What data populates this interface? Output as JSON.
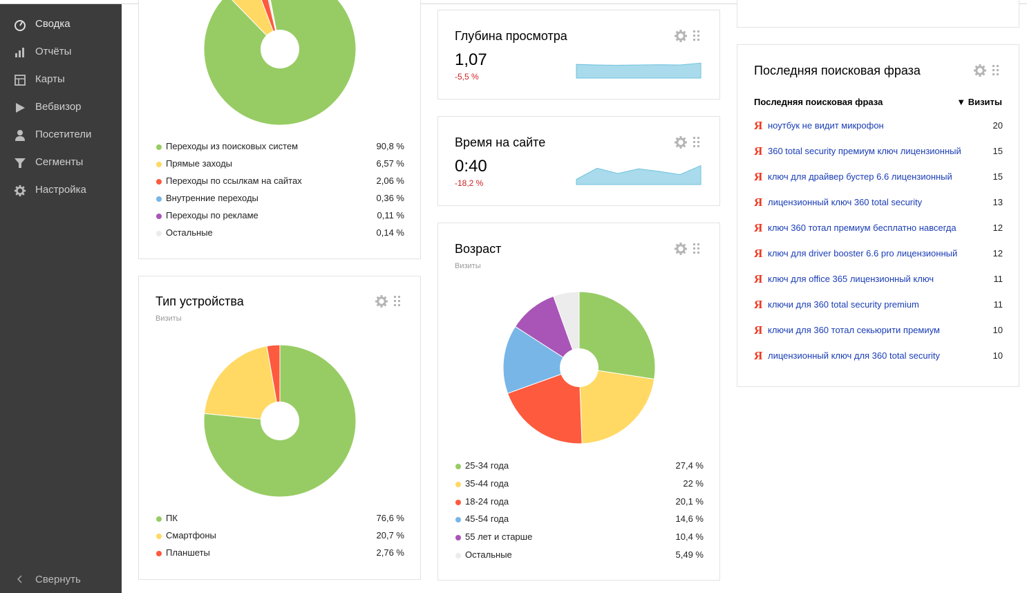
{
  "sidebar": {
    "items": [
      {
        "label": "Сводка",
        "icon": "dashboard-icon"
      },
      {
        "label": "Отчёты",
        "icon": "bar-chart-icon"
      },
      {
        "label": "Карты",
        "icon": "map-icon"
      },
      {
        "label": "Вебвизор",
        "icon": "play-icon"
      },
      {
        "label": "Посетители",
        "icon": "user-icon"
      },
      {
        "label": "Сегменты",
        "icon": "filter-icon"
      },
      {
        "label": "Настройка",
        "icon": "gear-icon"
      }
    ],
    "collapse_label": "Свернуть"
  },
  "colors": {
    "green": "#97cc64",
    "yellow": "#ffd963",
    "red": "#fd5a3e",
    "blue": "#77b6e7",
    "purple": "#a955b8",
    "gray": "#ececec",
    "sparkline": "#a9dbec",
    "sparkline_line": "#6fc0dd"
  },
  "sources": {
    "legend": [
      {
        "label": "Переходы из поисковых систем",
        "value": "90,8 %",
        "color": "#97cc64"
      },
      {
        "label": "Прямые заходы",
        "value": "6,57 %",
        "color": "#ffd963"
      },
      {
        "label": "Переходы по ссылкам на сайтах",
        "value": "2,06 %",
        "color": "#fd5a3e"
      },
      {
        "label": "Внутренние переходы",
        "value": "0,36 %",
        "color": "#77b6e7"
      },
      {
        "label": "Переходы по рекламе",
        "value": "0,11 %",
        "color": "#a955b8"
      },
      {
        "label": "Остальные",
        "value": "0,14 %",
        "color": "#ececec"
      }
    ]
  },
  "devices": {
    "title": "Тип устройства",
    "subtitle": "Визиты",
    "legend": [
      {
        "label": "ПК",
        "value": "76,6 %",
        "color": "#97cc64"
      },
      {
        "label": "Смартфоны",
        "value": "20,7 %",
        "color": "#ffd963"
      },
      {
        "label": "Планшеты",
        "value": "2,76 %",
        "color": "#fd5a3e"
      }
    ]
  },
  "depth": {
    "title": "Глубина просмотра",
    "value": "1,07",
    "delta": "-5,5 %",
    "series": [
      0.52,
      0.5,
      0.49,
      0.5,
      0.51,
      0.5,
      0.57
    ]
  },
  "time": {
    "title": "Время на сайте",
    "value": "0:40",
    "delta": "-18,2 %",
    "series": [
      0.2,
      0.62,
      0.42,
      0.6,
      0.5,
      0.38,
      0.72
    ]
  },
  "age": {
    "title": "Возраст",
    "subtitle": "Визиты",
    "legend": [
      {
        "label": "25-34 года",
        "value": "27,4 %",
        "color": "#97cc64"
      },
      {
        "label": "35-44 года",
        "value": "22 %",
        "color": "#ffd963"
      },
      {
        "label": "18-24 года",
        "value": "20,1 %",
        "color": "#fd5a3e"
      },
      {
        "label": "45-54 года",
        "value": "14,6 %",
        "color": "#77b6e7"
      },
      {
        "label": "55 лет и старше",
        "value": "10,4 %",
        "color": "#a955b8"
      },
      {
        "label": "Остальные",
        "value": "5,49 %",
        "color": "#ececec"
      }
    ]
  },
  "search": {
    "title": "Последняя поисковая фраза",
    "col_phrase": "Последняя поисковая фраза",
    "col_visits": "▼ Визиты",
    "rows": [
      {
        "phrase": "ноутбук не видит микрофон",
        "visits": "20"
      },
      {
        "phrase": "360 total security премиум ключ лицензионный",
        "visits": "15"
      },
      {
        "phrase": "ключ для драйвер бустер 6.6 лицензионный",
        "visits": "15"
      },
      {
        "phrase": "лицензионный ключ 360 total security",
        "visits": "13"
      },
      {
        "phrase": "ключ 360 тотал премиум бесплатно навсегда",
        "visits": "12"
      },
      {
        "phrase": "ключ для driver booster 6.6 pro лицензионный",
        "visits": "12"
      },
      {
        "phrase": "ключ для office 365 лицензионный ключ",
        "visits": "11"
      },
      {
        "phrase": "ключи для 360 total security premium",
        "visits": "11"
      },
      {
        "phrase": "ключи для 360 тотал секьюрити премиум",
        "visits": "10"
      },
      {
        "phrase": "лицензионный ключ для 360 total security",
        "visits": "10"
      }
    ]
  },
  "chart_data": [
    {
      "type": "pie",
      "title": "",
      "categories": [
        "Переходы из поисковых систем",
        "Прямые заходы",
        "Переходы по ссылкам на сайтах",
        "Внутренние переходы",
        "Переходы по рекламе",
        "Остальные"
      ],
      "values": [
        90.8,
        6.57,
        2.06,
        0.36,
        0.11,
        0.14
      ]
    },
    {
      "type": "pie",
      "title": "Тип устройства",
      "categories": [
        "ПК",
        "Смартфоны",
        "Планшеты"
      ],
      "values": [
        76.6,
        20.7,
        2.76
      ]
    },
    {
      "type": "pie",
      "title": "Возраст",
      "categories": [
        "25-34 года",
        "35-44 года",
        "18-24 года",
        "45-54 года",
        "55 лет и старше",
        "Остальные"
      ],
      "values": [
        27.4,
        22,
        20.1,
        14.6,
        10.4,
        5.49
      ]
    }
  ]
}
